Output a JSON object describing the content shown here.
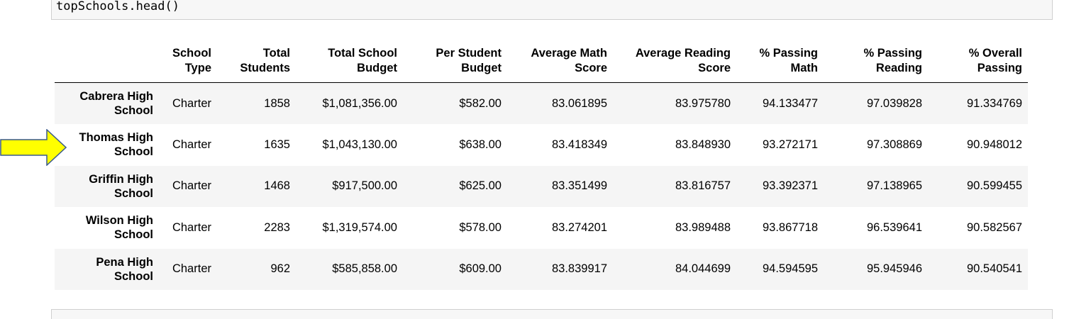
{
  "code_cell": {
    "text": "topSchools.head()"
  },
  "table": {
    "columns": [
      [
        "School",
        "Type"
      ],
      [
        "Total",
        "Students"
      ],
      [
        "Total School",
        "Budget"
      ],
      [
        "Per Student",
        "Budget"
      ],
      [
        "Average Math",
        "Score"
      ],
      [
        "Average Reading",
        "Score"
      ],
      [
        "% Passing",
        "Math"
      ],
      [
        "% Passing",
        "Reading"
      ],
      [
        "% Overall",
        "Passing"
      ]
    ],
    "rows": [
      {
        "index": [
          "Cabrera High",
          "School"
        ],
        "cells": [
          "Charter",
          "1858",
          "$1,081,356.00",
          "$582.00",
          "83.061895",
          "83.975780",
          "94.133477",
          "97.039828",
          "91.334769"
        ]
      },
      {
        "index": [
          "Thomas High",
          "School"
        ],
        "cells": [
          "Charter",
          "1635",
          "$1,043,130.00",
          "$638.00",
          "83.418349",
          "83.848930",
          "93.272171",
          "97.308869",
          "90.948012"
        ]
      },
      {
        "index": [
          "Griffin High",
          "School"
        ],
        "cells": [
          "Charter",
          "1468",
          "$917,500.00",
          "$625.00",
          "83.351499",
          "83.816757",
          "93.392371",
          "97.138965",
          "90.599455"
        ]
      },
      {
        "index": [
          "Wilson High",
          "School"
        ],
        "cells": [
          "Charter",
          "2283",
          "$1,319,574.00",
          "$578.00",
          "83.274201",
          "83.989488",
          "93.867718",
          "96.539641",
          "90.582567"
        ]
      },
      {
        "index": [
          "Pena High",
          "School"
        ],
        "cells": [
          "Charter",
          "962",
          "$585,858.00",
          "$609.00",
          "83.839917",
          "84.044699",
          "94.594595",
          "95.945946",
          "90.540541"
        ]
      }
    ]
  },
  "arrow": {
    "icon": "right-arrow-icon",
    "fill": "#ffff00",
    "stroke": "#3a5a8c",
    "points_to_row": 1
  }
}
